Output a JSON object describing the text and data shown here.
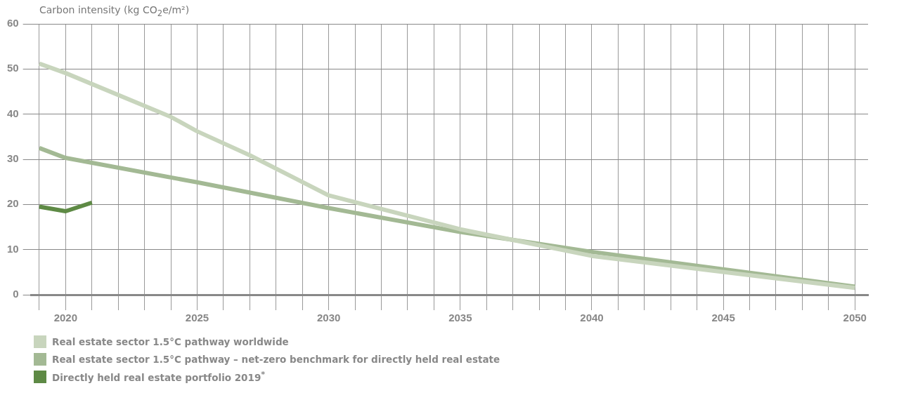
{
  "chart_data": {
    "type": "line",
    "ylabel": "Carbon intensity (kg CO$_{2}$e/m²)",
    "xlim": [
      2018.7,
      2050.5
    ],
    "xticks": [
      {
        "value": 2019,
        "label": null
      },
      2020,
      {
        "value": 2021,
        "label": null
      },
      {
        "value": 2022,
        "label": null
      },
      {
        "value": 2023,
        "label": null
      },
      {
        "value": 2024,
        "label": null
      },
      2025,
      {
        "value": 2026,
        "label": null
      },
      {
        "value": 2027,
        "label": null
      },
      {
        "value": 2028,
        "label": null
      },
      {
        "value": 2029,
        "label": null
      },
      2030,
      {
        "value": 2031,
        "label": null
      },
      {
        "value": 2032,
        "label": null
      },
      {
        "value": 2033,
        "label": null
      },
      {
        "value": 2034,
        "label": null
      },
      2035,
      {
        "value": 2036,
        "label": null
      },
      {
        "value": 2037,
        "label": null
      },
      {
        "value": 2038,
        "label": null
      },
      {
        "value": 2039,
        "label": null
      },
      2040,
      {
        "value": 2041,
        "label": null
      },
      {
        "value": 2042,
        "label": null
      },
      {
        "value": 2043,
        "label": null
      },
      {
        "value": 2044,
        "label": null
      },
      2045,
      {
        "value": 2046,
        "label": null
      },
      {
        "value": 2047,
        "label": null
      },
      {
        "value": 2048,
        "label": null
      },
      {
        "value": 2049,
        "label": null
      },
      2050
    ],
    "ylim": [
      0,
      60
    ],
    "yticks": [
      0,
      10,
      20,
      30,
      40,
      50,
      60
    ],
    "grid": true,
    "legend": "bottom",
    "marker": "none",
    "line_style": "solid",
    "series": [
      {
        "name": "Real estate sector 1.5°C pathway worldwide",
        "color": "#c8d5bd",
        "x": [
          2019,
          2020,
          2024,
          2025,
          2027,
          2030,
          2035,
          2040,
          2050
        ],
        "values": [
          51.2,
          49.1,
          39.4,
          36.2,
          30.9,
          22.0,
          14.5,
          8.6,
          1.5
        ]
      },
      {
        "name": "Real estate sector 1.5°C pathway – net-zero benchmark for directly held real estate",
        "color": "#a3b994",
        "x": [
          2019,
          2020,
          2025,
          2030,
          2035,
          2040,
          2050
        ],
        "values": [
          32.5,
          30.3,
          24.9,
          19.2,
          13.9,
          9.5,
          1.8
        ]
      },
      {
        "name": "Directly held real estate portfolio 2019$^{*}$",
        "color": "#5e8a45",
        "x": [
          2019,
          2020,
          2021
        ],
        "values": [
          19.5,
          18.5,
          20.4
        ]
      }
    ]
  }
}
